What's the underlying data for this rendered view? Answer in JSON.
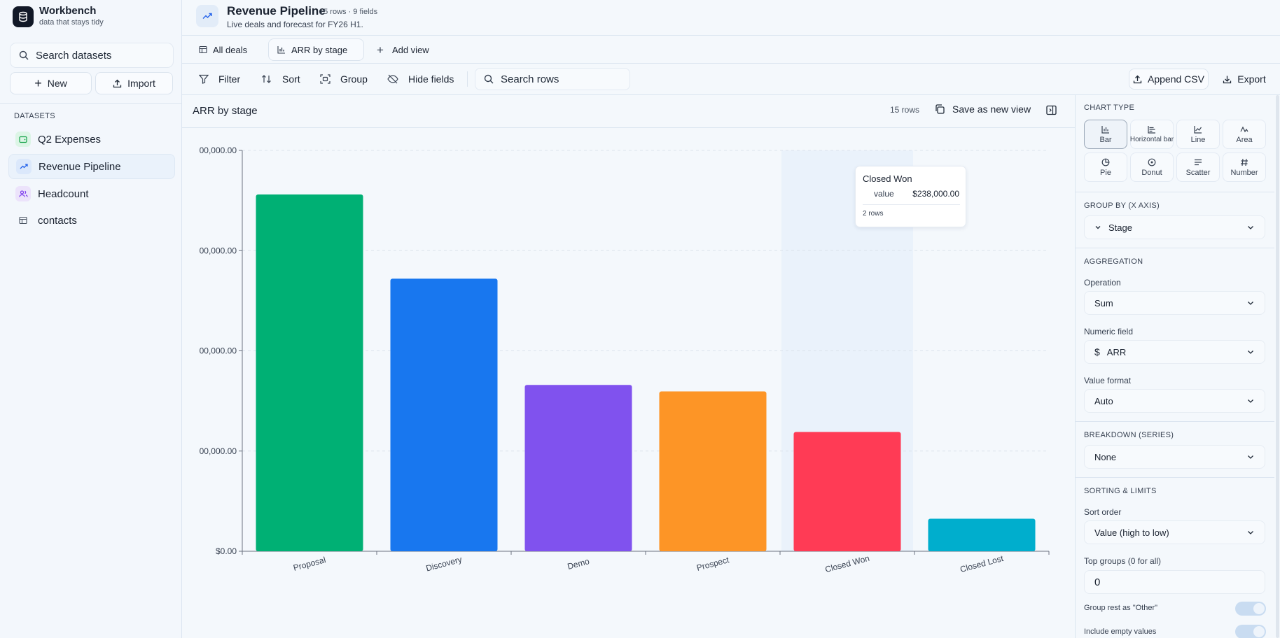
{
  "brand": {
    "name": "Workbench",
    "tagline": "data that stays tidy"
  },
  "sidebar": {
    "search_placeholder": "Search datasets",
    "new_label": "New",
    "import_label": "Import",
    "section": "DATASETS",
    "items": [
      {
        "label": "Q2 Expenses",
        "icon": "wallet-icon",
        "color": "#16a34a"
      },
      {
        "label": "Revenue Pipeline",
        "icon": "trend-icon",
        "color": "#2563eb"
      },
      {
        "label": "Headcount",
        "icon": "people-icon",
        "color": "#7c3aed"
      },
      {
        "label": "contacts",
        "icon": "table-icon",
        "color": "#6b7280"
      }
    ]
  },
  "header": {
    "title": "Revenue Pipeline",
    "meta": "15 rows · 9 fields",
    "subtitle": "Live deals and forecast for FY26 H1."
  },
  "tabs": [
    {
      "label": "All deals",
      "icon": "table-icon"
    },
    {
      "label": "ARR by stage",
      "icon": "bar-chart-icon"
    },
    {
      "label": "Add view",
      "icon": "plus-icon"
    }
  ],
  "toolbar": {
    "filter": "Filter",
    "sort": "Sort",
    "group": "Group",
    "hide_fields": "Hide fields",
    "search_placeholder": "Search rows",
    "append_csv": "Append CSV",
    "export": "Export"
  },
  "chart_panel": {
    "title": "ARR by stage",
    "rows": "15 rows",
    "save_view": "Save as new view"
  },
  "chart_data": {
    "type": "bar",
    "title": "",
    "xlabel": "",
    "ylabel": "",
    "categories": [
      "Proposal",
      "Discovery",
      "Demo",
      "Prospect",
      "Closed Won",
      "Closed Lost"
    ],
    "values": [
      712000,
      544000,
      332000,
      319000,
      238000,
      65000
    ],
    "colors": [
      "#00b074",
      "#1877ef",
      "#8052ee",
      "#fd9526",
      "#ff3b55",
      "#00aecd"
    ],
    "ylim": [
      0,
      800000
    ],
    "y_ticks": [
      0,
      200000,
      400000,
      600000,
      800000
    ],
    "y_tick_labels": [
      "$0.00",
      "00,000.00",
      "00,000.00",
      "00,000.00",
      "00,000.00"
    ],
    "grid": true,
    "highlighted_category": "Closed Won",
    "tooltip": {
      "title": "Closed Won",
      "label": "value",
      "value": "$238,000.00",
      "rows": "2 rows"
    }
  },
  "right_panel": {
    "chart_type_label": "CHART TYPE",
    "chart_types": [
      {
        "label": "Bar",
        "icon": "bar-icon",
        "active": true
      },
      {
        "label": "Horizontal bar",
        "icon": "hbar-icon"
      },
      {
        "label": "Line",
        "icon": "line-icon"
      },
      {
        "label": "Area",
        "icon": "area-icon"
      },
      {
        "label": "Pie",
        "icon": "pie-icon"
      },
      {
        "label": "Donut",
        "icon": "donut-icon"
      },
      {
        "label": "Scatter",
        "icon": "scatter-icon"
      },
      {
        "label": "Number",
        "icon": "hash-icon"
      }
    ],
    "group_by_label": "GROUP BY (X AXIS)",
    "group_by_value": "Stage",
    "aggregation_label": "AGGREGATION",
    "operation_label": "Operation",
    "operation_value": "Sum",
    "numeric_field_label": "Numeric field",
    "numeric_field_value": "ARR",
    "value_format_label": "Value format",
    "value_format_value": "Auto",
    "breakdown_label": "BREAKDOWN (SERIES)",
    "breakdown_value": "None",
    "sorting_label": "SORTING & LIMITS",
    "sort_order_label": "Sort order",
    "sort_order_value": "Value (high to low)",
    "top_groups_label": "Top groups (0 for all)",
    "top_groups_value": "0",
    "group_rest_label": "Group rest as \"Other\"",
    "include_empty_label": "Include empty values"
  }
}
